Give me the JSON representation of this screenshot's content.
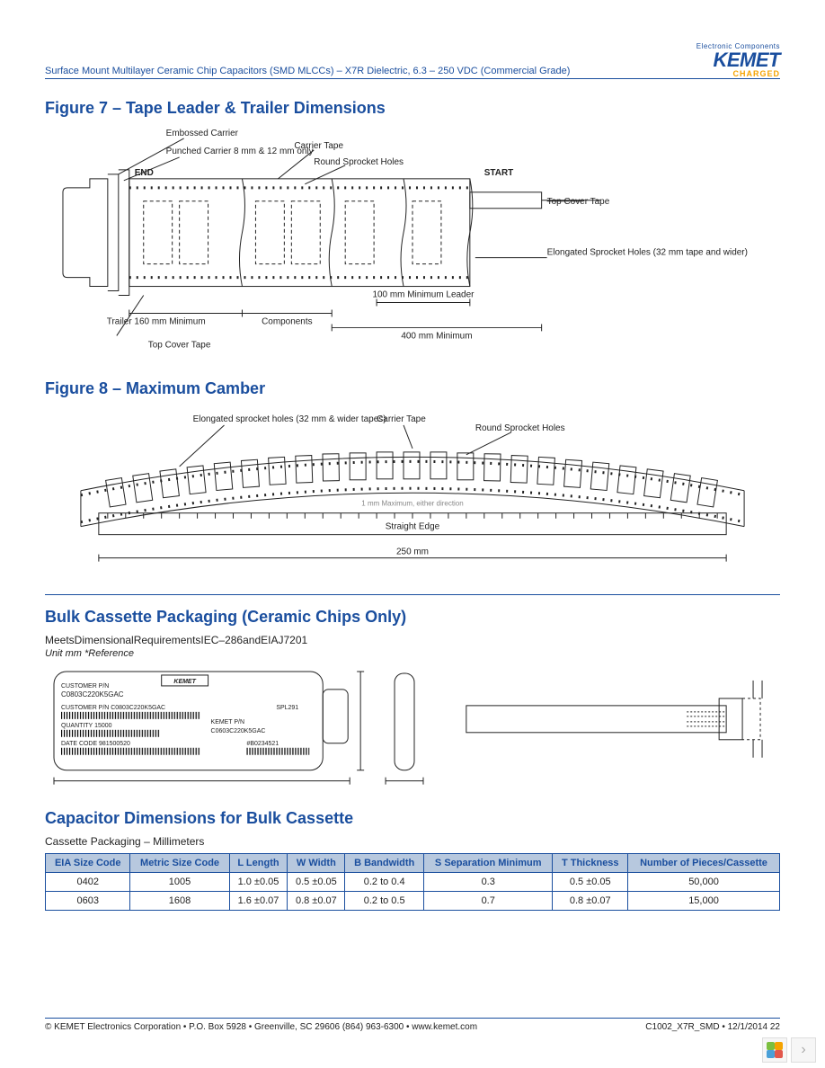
{
  "header": {
    "title": "Surface Mount Multilayer Ceramic Chip Capacitors (SMD MLCCs) – X7R Dielectric, 6.3 – 250 VDC (Commercial Grade)",
    "logo_tag": "Electronic Components",
    "logo_main": "KEMET",
    "logo_sub": "CHARGED"
  },
  "fig7": {
    "title": "Figure 7 – Tape Leader & Trailer Dimensions",
    "labels": {
      "embossed": "Embossed Carrier",
      "punched": "Punched Carrier\n8 mm & 12 mm only",
      "end": "END",
      "carrier_tape": "Carrier Tape",
      "round_holes": "Round Sprocket Holes",
      "start": "START",
      "top_cover_r": "Top Cover Tape",
      "elong": "Elongated Sprocket Holes\n(32 mm tape and wider)",
      "top_cover_l": "Top Cover Tape",
      "trailer": "Trailer\n160 mm Minimum",
      "components": "Components",
      "min_leader": "100 mm\nMinimum Leader",
      "leader_400": "400 mm Minimum"
    }
  },
  "fig8": {
    "title": "Figure 8 – Maximum Camber",
    "labels": {
      "elong": "Elongated sprocket holes\n(32 mm & wider tapes)",
      "carrier_tape": "Carrier Tape",
      "round_holes": "Round Sprocket Holes",
      "max_dir": "1 mm Maximum, either direction",
      "straight": "Straight Edge",
      "span": "250 mm"
    }
  },
  "bulk": {
    "title": "Bulk Cassette Packaging (Ceramic Chips Only)",
    "req": "MeetsDimensionalRequirementsIEC–286andEIAJ7201",
    "unit": "Unit mm *Reference",
    "cassette": {
      "brand": "KEMET",
      "cust_pn_lbl": "CUSTOMER P/N",
      "cust_pn": "C0803C220K5GAC",
      "cust_pn2_lbl": "CUSTOMER P/N",
      "cust_pn2": "C0803C220K5GAC",
      "spl": "SPL291",
      "qty_lbl": "QUANTITY",
      "qty": "15000",
      "kemet_pn_lbl": "KEMET P/N",
      "kemet_pn": "C0603C220K5GAC",
      "date_lbl": "DATE CODE",
      "date": "981500520",
      "lot": "#B0234521"
    }
  },
  "dimtable": {
    "title": "Capacitor Dimensions for Bulk Cassette",
    "subtitle": "Cassette Packaging – Millimeters",
    "columns": [
      "EIA Size Code",
      "Metric Size Code",
      "L Length",
      "W Width",
      "B Bandwidth",
      "S Separation Minimum",
      "T Thickness",
      "Number of Pieces/Cassette"
    ],
    "rows": [
      [
        "0402",
        "1005",
        "1.0 ±0.05",
        "0.5 ±0.05",
        "0.2 to 0.4",
        "0.3",
        "0.5 ±0.05",
        "50,000"
      ],
      [
        "0603",
        "1608",
        "1.6 ±0.07",
        "0.8 ±0.07",
        "0.2 to 0.5",
        "0.7",
        "0.8 ±0.07",
        "15,000"
      ]
    ]
  },
  "footer": {
    "left": "© KEMET Electronics Corporation • P.O. Box 5928 • Greenville, SC 29606 (864) 963-6300 • www.kemet.com",
    "right": "C1002_X7R_SMD • 12/1/2014  22"
  },
  "colors": {
    "blue": "#1a4e9e",
    "th_bg": "#b7c8de",
    "orange": "#f5a300"
  },
  "clover": [
    "#7bbf3f",
    "#f5a300",
    "#4aa0d8",
    "#e2574c"
  ]
}
